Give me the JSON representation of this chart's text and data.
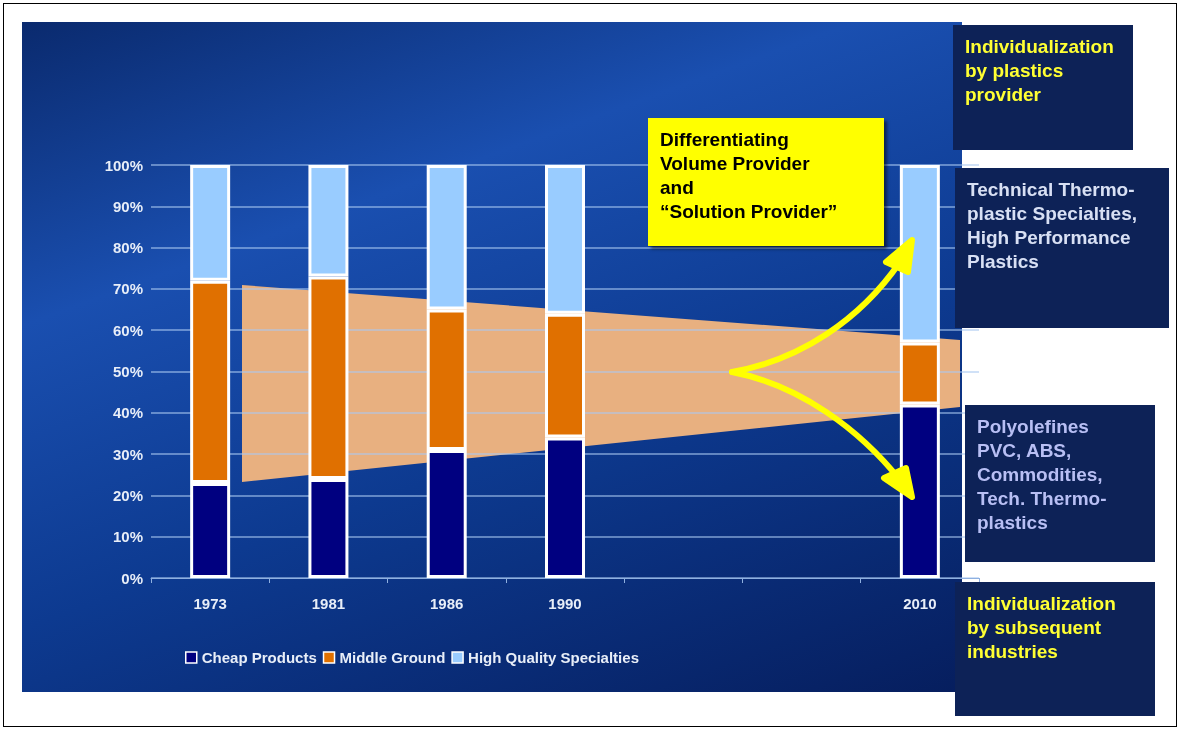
{
  "chart_data": {
    "type": "bar",
    "stacked": true,
    "categories": [
      "1973",
      "1981",
      "1986",
      "1990",
      null,
      null,
      "2010"
    ],
    "series": [
      {
        "name": "Cheap Products",
        "color": "#000080",
        "values": [
          23,
          24,
          31,
          34,
          null,
          null,
          42
        ]
      },
      {
        "name": "Middle Ground",
        "color": "#e07000",
        "values": [
          49,
          49,
          34,
          30,
          null,
          null,
          15
        ]
      },
      {
        "name": "High Quality Specialties",
        "color": "#99ccff",
        "values": [
          28,
          27,
          35,
          36,
          null,
          null,
          43
        ]
      }
    ],
    "ylim": [
      0,
      100
    ],
    "yticks": [
      {
        "value": 0,
        "label": "0%"
      },
      {
        "value": 10,
        "label": "10%"
      },
      {
        "value": 20,
        "label": "20%"
      },
      {
        "value": 30,
        "label": "30%"
      },
      {
        "value": 40,
        "label": "40%"
      },
      {
        "value": 50,
        "label": "50%"
      },
      {
        "value": 60,
        "label": "60%"
      },
      {
        "value": 70,
        "label": "70%"
      },
      {
        "value": 80,
        "label": "80%"
      },
      {
        "value": 90,
        "label": "90%"
      },
      {
        "value": 100,
        "label": "100%"
      }
    ],
    "grid": "y",
    "legend": "bottom",
    "annotations": [
      "Differentiating\nVolume Provider\nand\n“Solution Provider”",
      "Individualization\nby plastics\nprovider",
      "Technical Thermo-\nplastic Specialties,\nHigh Performance\nPlastics",
      "Polyolefines\nPVC, ABS,\nCommodities,\nTech. Thermo-\nplastics",
      "Individualization\nby subsequent\nindustries"
    ]
  }
}
